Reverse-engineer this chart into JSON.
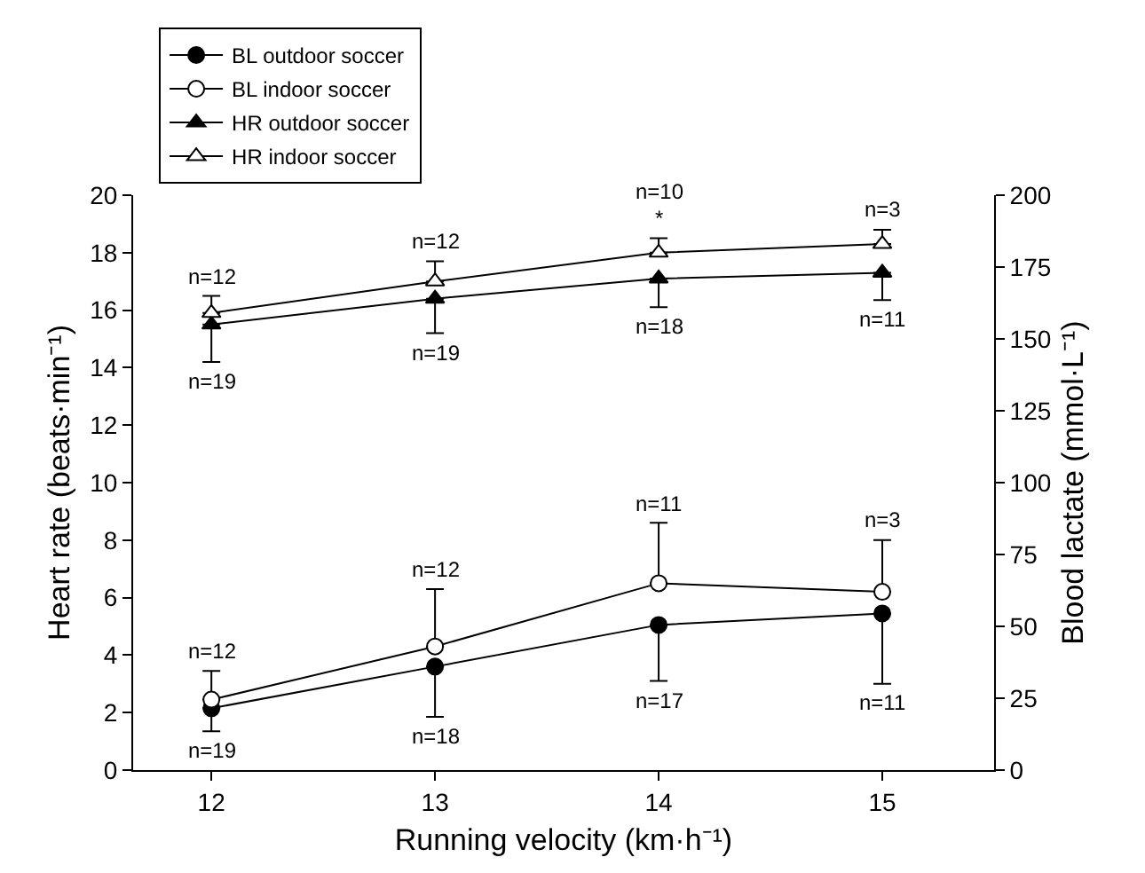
{
  "chart_data": {
    "type": "line",
    "xlabel": "Running velocity (km·h⁻¹)",
    "ylabel": "Heart rate (beats·min⁻¹)",
    "y2label": "Blood lactate (mmol·L⁻¹)",
    "x": [
      12,
      13,
      14,
      15
    ],
    "series": [
      {
        "name": "BL outdoor soccer",
        "color": "#000000",
        "marker": "circle",
        "values": [
          2.15,
          3.6,
          5.05,
          5.45
        ],
        "errors": [
          [
            1.35,
            2.15
          ],
          [
            1.85,
            3.6
          ],
          [
            3.1,
            5.05
          ],
          [
            3.0,
            5.45
          ]
        ]
      },
      {
        "name": "BL indoor soccer",
        "color": "#ffffff",
        "marker": "circle",
        "values": [
          2.45,
          4.3,
          6.5,
          6.2
        ],
        "errors": [
          [
            2.45,
            3.45
          ],
          [
            4.3,
            6.3
          ],
          [
            6.5,
            8.6
          ],
          [
            6.2,
            8.0
          ]
        ]
      },
      {
        "name": "HR outdoor soccer",
        "color": "#000000",
        "marker": "triangle",
        "axis": "y2",
        "values": [
          155,
          164,
          171,
          173
        ],
        "errors": [
          [
            142,
            155
          ],
          [
            152,
            164
          ],
          [
            161,
            171
          ],
          [
            163.5,
            173
          ]
        ]
      },
      {
        "name": "HR indoor soccer",
        "color": "#ffffff",
        "marker": "triangle",
        "axis": "y2",
        "values": [
          159,
          170,
          180,
          183
        ],
        "errors": [
          [
            159,
            165
          ],
          [
            170,
            177
          ],
          [
            180,
            185
          ],
          [
            183,
            188
          ]
        ]
      }
    ],
    "annotations": [
      {
        "text": "n=12",
        "x": 12,
        "y": 16.5
      },
      {
        "text": "n=19",
        "x": 12,
        "y": 14.2
      },
      {
        "text": "n=12",
        "x": 13,
        "y": 17.7
      },
      {
        "text": "n=19",
        "x": 13,
        "y": 15.2
      },
      {
        "text": "*",
        "x": 14,
        "y": 18.5
      },
      {
        "text": "n=10",
        "x": 14,
        "y": 18.5
      },
      {
        "text": "n=18",
        "x": 14,
        "y": 16.1
      },
      {
        "text": "n=3",
        "x": 15,
        "y": 18.8
      },
      {
        "text": "n=11",
        "x": 15,
        "y": 16.35
      },
      {
        "text": "n=12",
        "x": 12,
        "y": 3.45
      },
      {
        "text": "n=19",
        "x": 12,
        "y": 1.35
      },
      {
        "text": "n=12",
        "x": 13,
        "y": 6.3
      },
      {
        "text": "n=18",
        "x": 13,
        "y": 1.85
      },
      {
        "text": "n=11",
        "x": 14,
        "y": 8.6
      },
      {
        "text": "n=17",
        "x": 14,
        "y": 3.1
      },
      {
        "text": "n=3",
        "x": 15,
        "y": 8.0
      },
      {
        "text": "n=11",
        "x": 15,
        "y": 3.0
      }
    ],
    "xlim": [
      11.65,
      15.5
    ],
    "xticks": [
      12,
      13,
      14,
      15
    ],
    "ylim": [
      0,
      20
    ],
    "yticks": [
      0,
      2,
      4,
      6,
      8,
      10,
      12,
      14,
      16,
      18,
      20
    ],
    "y2lim": [
      0,
      200
    ],
    "y2ticks": [
      0,
      25,
      50,
      75,
      100,
      125,
      150,
      175,
      200
    ],
    "legend": "top left"
  }
}
